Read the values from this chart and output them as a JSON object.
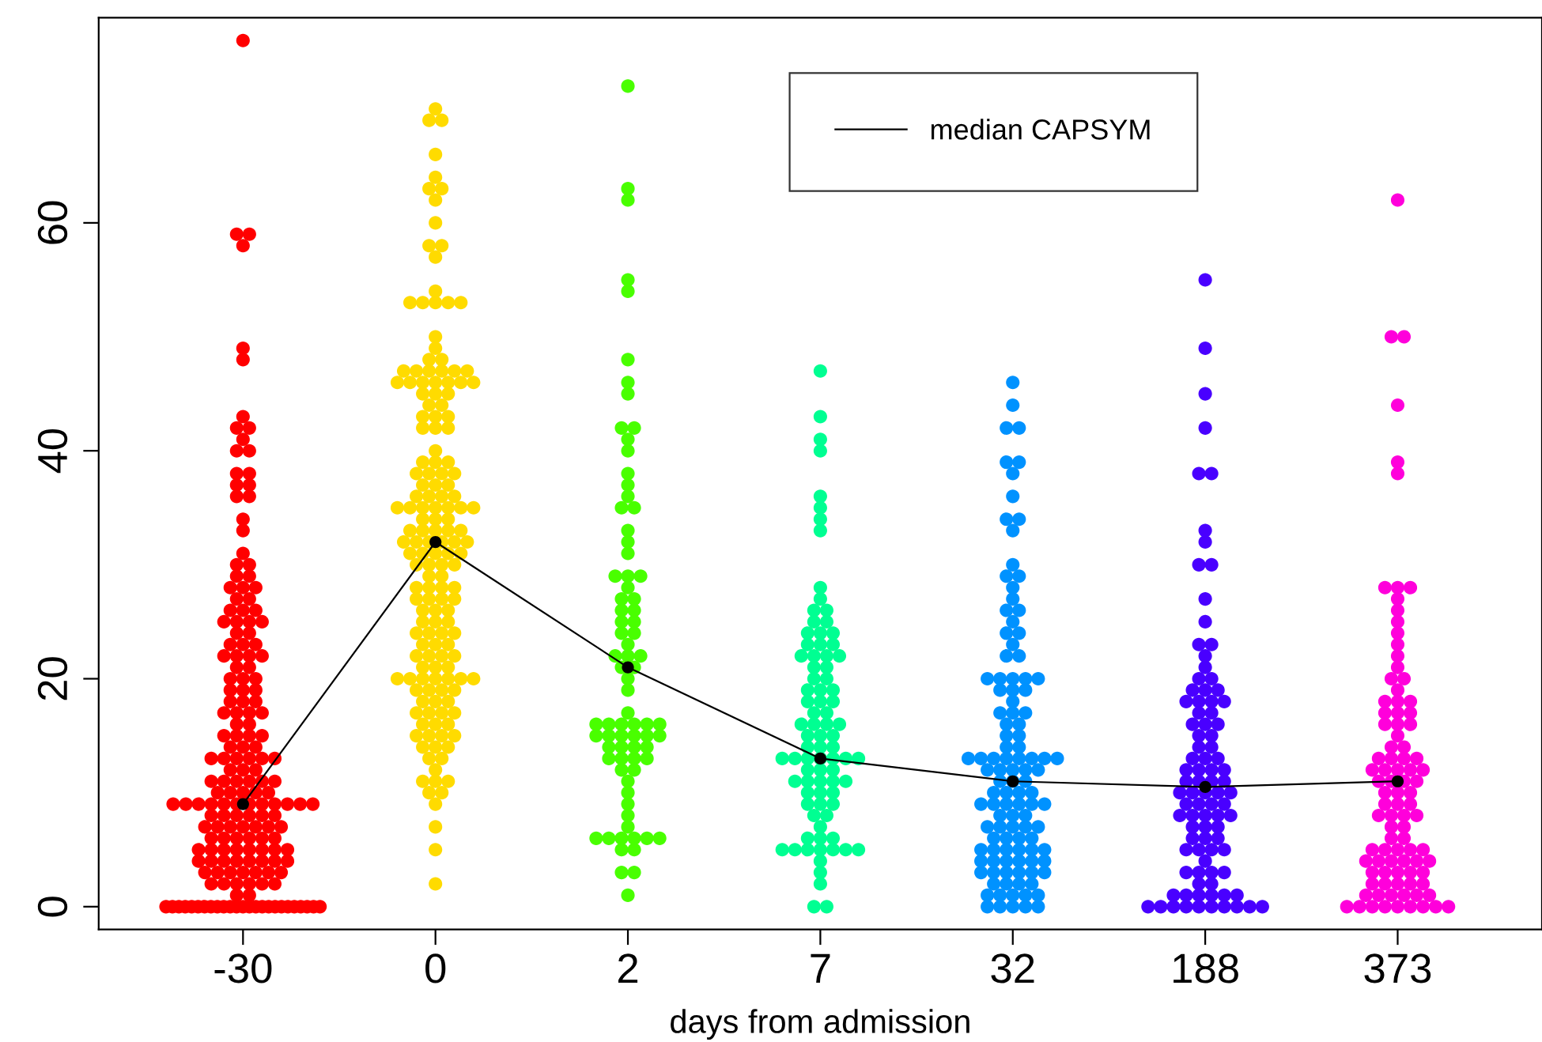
{
  "chart_data": {
    "type": "scatter",
    "xlabel": "days from admission",
    "categories": [
      "-30",
      "0",
      "2",
      "7",
      "32",
      "188",
      "373"
    ],
    "ylim": [
      -2,
      78
    ],
    "yticks": [
      0,
      20,
      40,
      60
    ],
    "grid": false,
    "legend": "top",
    "marker": "circle",
    "series": [
      {
        "type": "scatter",
        "color": "#ff0000",
        "x": [
          "-30",
          "-30",
          "-30",
          "-30",
          "-30",
          "-30",
          "-30",
          "-30",
          "-30",
          "-30",
          "-30",
          "-30",
          "-30",
          "-30",
          "-30",
          "-30",
          "-30",
          "-30",
          "-30",
          "-30",
          "-30",
          "-30",
          "-30",
          "-30",
          "-30",
          "-30",
          "-30",
          "-30",
          "-30",
          "-30",
          "-30",
          "-30",
          "-30",
          "-30",
          "-30",
          "-30",
          "-30",
          "-30",
          "-30",
          "-30",
          "-30",
          "-30",
          "-30",
          "-30",
          "-30",
          "-30",
          "-30",
          "-30",
          "-30",
          "-30",
          "-30",
          "-30",
          "-30",
          "-30",
          "-30",
          "-30",
          "-30",
          "-30",
          "-30",
          "-30",
          "-30",
          "-30",
          "-30",
          "-30",
          "-30",
          "-30",
          "-30",
          "-30",
          "-30",
          "-30",
          "-30",
          "-30",
          "-30",
          "-30",
          "-30",
          "-30",
          "-30",
          "-30",
          "-30",
          "-30",
          "-30",
          "-30",
          "-30",
          "-30",
          "-30",
          "-30",
          "-30",
          "-30",
          "-30",
          "-30",
          "-30",
          "-30",
          "-30",
          "-30",
          "-30",
          "-30",
          "-30",
          "-30",
          "-30",
          "-30",
          "-30",
          "-30",
          "-30",
          "-30",
          "-30",
          "-30",
          "-30",
          "-30",
          "-30",
          "-30",
          "-30",
          "-30",
          "-30",
          "-30",
          "-30",
          "-30",
          "-30",
          "-30",
          "-30",
          "-30",
          "-30",
          "-30",
          "-30",
          "-30",
          "-30",
          "-30",
          "-30",
          "-30",
          "-30",
          "-30",
          "-30",
          "-30",
          "-30",
          "-30",
          "-30",
          "-30",
          "-30",
          "-30",
          "-30",
          "-30",
          "-30",
          "-30",
          "-30",
          "-30",
          "-30",
          "-30",
          "-30",
          "-30",
          "-30",
          "-30",
          "-30",
          "-30",
          "-30",
          "-30",
          "-30",
          "-30",
          "-30",
          "-30",
          "-30",
          "-30",
          "-30",
          "-30",
          "-30",
          "-30",
          "-30",
          "-30",
          "-30",
          "-30",
          "-30",
          "-30",
          "-30",
          "-30",
          "-30",
          "-30",
          "-30",
          "-30",
          "-30"
        ],
        "values": [
          0,
          0,
          0,
          0,
          0,
          0,
          0,
          0,
          0,
          0,
          0,
          0,
          0,
          0,
          0,
          0,
          0,
          0,
          0,
          0,
          0,
          0,
          0,
          0,
          0,
          1,
          1,
          2,
          2,
          2,
          2,
          2,
          2,
          3,
          3,
          3,
          3,
          3,
          3,
          3,
          4,
          4,
          4,
          4,
          4,
          4,
          4,
          4,
          5,
          5,
          5,
          5,
          5,
          5,
          5,
          5,
          6,
          6,
          6,
          6,
          6,
          6,
          7,
          7,
          7,
          7,
          7,
          7,
          7,
          8,
          8,
          8,
          8,
          8,
          8,
          9,
          9,
          9,
          9,
          9,
          9,
          9,
          9,
          9,
          9,
          9,
          9,
          10,
          10,
          10,
          10,
          10,
          11,
          11,
          11,
          11,
          11,
          11,
          12,
          12,
          12,
          13,
          13,
          13,
          13,
          13,
          13,
          14,
          14,
          14,
          15,
          15,
          15,
          15,
          16,
          16,
          17,
          17,
          17,
          17,
          18,
          18,
          18,
          19,
          19,
          19,
          20,
          20,
          20,
          21,
          21,
          22,
          22,
          22,
          22,
          23,
          23,
          23,
          24,
          24,
          25,
          25,
          25,
          25,
          26,
          26,
          26,
          27,
          27,
          28,
          28,
          28,
          29,
          29,
          30,
          30,
          31,
          33,
          34,
          36,
          36,
          37,
          37,
          38,
          38,
          40,
          40,
          41,
          42,
          42,
          43,
          48,
          49,
          58,
          59,
          59,
          76
        ]
      },
      {
        "type": "scatter",
        "color": "#ffdb00",
        "x": [
          "0",
          "0",
          "0",
          "0",
          "0",
          "0",
          "0",
          "0",
          "0",
          "0",
          "0",
          "0",
          "0",
          "0",
          "0",
          "0",
          "0",
          "0",
          "0",
          "0",
          "0",
          "0",
          "0",
          "0",
          "0",
          "0",
          "0",
          "0",
          "0",
          "0",
          "0",
          "0",
          "0",
          "0",
          "0",
          "0",
          "0",
          "0",
          "0",
          "0",
          "0",
          "0",
          "0",
          "0",
          "0",
          "0",
          "0",
          "0",
          "0",
          "0",
          "0",
          "0",
          "0",
          "0",
          "0",
          "0",
          "0",
          "0",
          "0",
          "0",
          "0",
          "0",
          "0",
          "0",
          "0",
          "0",
          "0",
          "0",
          "0",
          "0",
          "0",
          "0",
          "0",
          "0",
          "0",
          "0",
          "0",
          "0",
          "0",
          "0",
          "0",
          "0",
          "0",
          "0",
          "0",
          "0",
          "0",
          "0",
          "0",
          "0",
          "0",
          "0",
          "0",
          "0",
          "0",
          "0",
          "0",
          "0",
          "0",
          "0",
          "0",
          "0",
          "0",
          "0",
          "0",
          "0",
          "0",
          "0",
          "0",
          "0",
          "0",
          "0",
          "0",
          "0",
          "0",
          "0",
          "0",
          "0",
          "0",
          "0",
          "0",
          "0",
          "0",
          "0",
          "0",
          "0",
          "0",
          "0",
          "0",
          "0",
          "0",
          "0",
          "0",
          "0",
          "0",
          "0",
          "0",
          "0",
          "0",
          "0",
          "0",
          "0",
          "0",
          "0",
          "0",
          "0",
          "0",
          "0",
          "0",
          "0",
          "0",
          "0",
          "0",
          "0",
          "0",
          "0",
          "0",
          "0",
          "0",
          "0",
          "0"
        ],
        "values": [
          2,
          5,
          7,
          9,
          10,
          10,
          11,
          11,
          11,
          12,
          13,
          13,
          14,
          14,
          14,
          15,
          15,
          15,
          15,
          16,
          16,
          16,
          17,
          17,
          17,
          17,
          18,
          18,
          18,
          19,
          19,
          19,
          19,
          20,
          20,
          20,
          20,
          20,
          20,
          20,
          21,
          21,
          21,
          22,
          22,
          22,
          22,
          23,
          23,
          23,
          24,
          24,
          24,
          24,
          25,
          25,
          25,
          26,
          26,
          26,
          27,
          27,
          27,
          27,
          28,
          28,
          28,
          28,
          29,
          29,
          30,
          30,
          30,
          30,
          31,
          31,
          31,
          31,
          31,
          32,
          32,
          32,
          32,
          32,
          32,
          33,
          33,
          33,
          33,
          33,
          34,
          34,
          34,
          35,
          35,
          35,
          35,
          35,
          35,
          35,
          36,
          36,
          36,
          36,
          37,
          37,
          37,
          38,
          38,
          38,
          38,
          39,
          39,
          39,
          40,
          42,
          42,
          42,
          43,
          43,
          43,
          44,
          44,
          45,
          45,
          45,
          46,
          46,
          46,
          46,
          46,
          46,
          46,
          47,
          47,
          47,
          47,
          47,
          47,
          48,
          48,
          49,
          50,
          53,
          53,
          53,
          53,
          53,
          54,
          57,
          58,
          58,
          60,
          62,
          63,
          63,
          64,
          66,
          69,
          69,
          70
        ]
      },
      {
        "type": "scatter",
        "color": "#49ff00",
        "x": [
          "2",
          "2",
          "2",
          "2",
          "2",
          "2",
          "2",
          "2",
          "2",
          "2",
          "2",
          "2",
          "2",
          "2",
          "2",
          "2",
          "2",
          "2",
          "2",
          "2",
          "2",
          "2",
          "2",
          "2",
          "2",
          "2",
          "2",
          "2",
          "2",
          "2",
          "2",
          "2",
          "2",
          "2",
          "2",
          "2",
          "2",
          "2",
          "2",
          "2",
          "2",
          "2",
          "2",
          "2",
          "2",
          "2",
          "2",
          "2",
          "2",
          "2",
          "2",
          "2",
          "2",
          "2",
          "2",
          "2",
          "2",
          "2",
          "2",
          "2",
          "2",
          "2",
          "2",
          "2",
          "2",
          "2",
          "2",
          "2",
          "2",
          "2",
          "2",
          "2",
          "2",
          "2",
          "2",
          "2",
          "2",
          "2",
          "2"
        ],
        "values": [
          1,
          3,
          3,
          5,
          5,
          6,
          6,
          6,
          6,
          6,
          6,
          7,
          8,
          9,
          10,
          11,
          12,
          12,
          13,
          13,
          13,
          13,
          14,
          14,
          14,
          14,
          15,
          15,
          15,
          15,
          15,
          15,
          16,
          16,
          16,
          16,
          16,
          16,
          17,
          19,
          20,
          21,
          21,
          22,
          22,
          22,
          23,
          24,
          24,
          25,
          25,
          26,
          26,
          27,
          27,
          28,
          29,
          29,
          29,
          31,
          32,
          33,
          35,
          35,
          36,
          37,
          38,
          40,
          41,
          42,
          42,
          45,
          46,
          48,
          54,
          55,
          62,
          63,
          72
        ]
      },
      {
        "type": "scatter",
        "color": "#00ff92",
        "x": [
          "7",
          "7",
          "7",
          "7",
          "7",
          "7",
          "7",
          "7",
          "7",
          "7",
          "7",
          "7",
          "7",
          "7",
          "7",
          "7",
          "7",
          "7",
          "7",
          "7",
          "7",
          "7",
          "7",
          "7",
          "7",
          "7",
          "7",
          "7",
          "7",
          "7",
          "7",
          "7",
          "7",
          "7",
          "7",
          "7",
          "7",
          "7",
          "7",
          "7",
          "7",
          "7",
          "7",
          "7",
          "7",
          "7",
          "7",
          "7",
          "7",
          "7",
          "7",
          "7",
          "7",
          "7",
          "7",
          "7",
          "7",
          "7",
          "7",
          "7",
          "7",
          "7",
          "7",
          "7",
          "7",
          "7",
          "7",
          "7",
          "7",
          "7",
          "7",
          "7",
          "7",
          "7",
          "7",
          "7",
          "7",
          "7",
          "7",
          "7",
          "7",
          "7",
          "7",
          "7",
          "7"
        ],
        "values": [
          0,
          0,
          2,
          3,
          4,
          5,
          5,
          5,
          5,
          5,
          5,
          5,
          6,
          6,
          6,
          7,
          8,
          8,
          9,
          9,
          9,
          10,
          10,
          10,
          11,
          11,
          11,
          11,
          11,
          12,
          12,
          12,
          13,
          13,
          13,
          13,
          13,
          13,
          13,
          14,
          14,
          14,
          15,
          15,
          15,
          16,
          16,
          16,
          16,
          17,
          17,
          18,
          18,
          18,
          19,
          19,
          19,
          20,
          20,
          21,
          21,
          22,
          22,
          22,
          22,
          23,
          23,
          23,
          24,
          24,
          24,
          25,
          25,
          26,
          26,
          27,
          28,
          33,
          34,
          35,
          36,
          40,
          41,
          43,
          47
        ]
      },
      {
        "type": "scatter",
        "color": "#0092ff",
        "x": [
          "32",
          "32",
          "32",
          "32",
          "32",
          "32",
          "32",
          "32",
          "32",
          "32",
          "32",
          "32",
          "32",
          "32",
          "32",
          "32",
          "32",
          "32",
          "32",
          "32",
          "32",
          "32",
          "32",
          "32",
          "32",
          "32",
          "32",
          "32",
          "32",
          "32",
          "32",
          "32",
          "32",
          "32",
          "32",
          "32",
          "32",
          "32",
          "32",
          "32",
          "32",
          "32",
          "32",
          "32",
          "32",
          "32",
          "32",
          "32",
          "32",
          "32",
          "32",
          "32",
          "32",
          "32",
          "32",
          "32",
          "32",
          "32",
          "32",
          "32",
          "32",
          "32",
          "32",
          "32",
          "32",
          "32",
          "32",
          "32",
          "32",
          "32",
          "32",
          "32",
          "32",
          "32",
          "32",
          "32",
          "32",
          "32",
          "32",
          "32",
          "32",
          "32",
          "32",
          "32",
          "32",
          "32",
          "32",
          "32",
          "32",
          "32",
          "32",
          "32",
          "32",
          "32",
          "32",
          "32",
          "32",
          "32",
          "32",
          "32",
          "32",
          "32",
          "32",
          "32",
          "32",
          "32",
          "32",
          "32",
          "32",
          "32",
          "32",
          "32"
        ],
        "values": [
          0,
          0,
          0,
          0,
          0,
          1,
          1,
          1,
          1,
          1,
          2,
          2,
          2,
          2,
          3,
          3,
          3,
          3,
          3,
          3,
          4,
          4,
          4,
          4,
          4,
          4,
          5,
          5,
          5,
          5,
          5,
          5,
          6,
          6,
          6,
          6,
          7,
          7,
          7,
          7,
          7,
          8,
          8,
          8,
          9,
          9,
          9,
          9,
          9,
          9,
          10,
          10,
          10,
          10,
          11,
          11,
          11,
          12,
          12,
          12,
          12,
          12,
          13,
          13,
          13,
          13,
          13,
          13,
          13,
          13,
          14,
          14,
          15,
          15,
          16,
          16,
          17,
          17,
          17,
          18,
          19,
          19,
          19,
          20,
          20,
          20,
          20,
          20,
          22,
          22,
          23,
          24,
          24,
          25,
          26,
          26,
          27,
          28,
          29,
          29,
          30,
          33,
          34,
          34,
          36,
          38,
          39,
          39,
          42,
          42,
          44,
          46
        ]
      },
      {
        "type": "scatter",
        "color": "#4900ff",
        "x": [
          "188",
          "188",
          "188",
          "188",
          "188",
          "188",
          "188",
          "188",
          "188",
          "188",
          "188",
          "188",
          "188",
          "188",
          "188",
          "188",
          "188",
          "188",
          "188",
          "188",
          "188",
          "188",
          "188",
          "188",
          "188",
          "188",
          "188",
          "188",
          "188",
          "188",
          "188",
          "188",
          "188",
          "188",
          "188",
          "188",
          "188",
          "188",
          "188",
          "188",
          "188",
          "188",
          "188",
          "188",
          "188",
          "188",
          "188",
          "188",
          "188",
          "188",
          "188",
          "188",
          "188",
          "188",
          "188",
          "188",
          "188",
          "188",
          "188",
          "188",
          "188",
          "188",
          "188",
          "188",
          "188",
          "188",
          "188",
          "188",
          "188",
          "188",
          "188",
          "188",
          "188",
          "188",
          "188",
          "188",
          "188",
          "188",
          "188",
          "188",
          "188",
          "188",
          "188",
          "188",
          "188",
          "188",
          "188",
          "188",
          "188",
          "188",
          "188",
          "188"
        ],
        "values": [
          0,
          0,
          0,
          0,
          0,
          0,
          0,
          0,
          0,
          0,
          1,
          1,
          1,
          1,
          1,
          1,
          2,
          2,
          3,
          3,
          3,
          3,
          4,
          5,
          5,
          5,
          5,
          6,
          6,
          6,
          7,
          7,
          7,
          8,
          8,
          8,
          8,
          8,
          9,
          9,
          9,
          9,
          10,
          10,
          10,
          10,
          10,
          11,
          11,
          11,
          11,
          12,
          12,
          12,
          12,
          13,
          13,
          13,
          14,
          14,
          15,
          15,
          16,
          16,
          16,
          17,
          17,
          18,
          18,
          18,
          18,
          19,
          19,
          19,
          20,
          20,
          21,
          22,
          23,
          23,
          25,
          27,
          30,
          30,
          32,
          33,
          38,
          38,
          42,
          45,
          49,
          55
        ]
      },
      {
        "type": "scatter",
        "color": "#ff00db",
        "x": [
          "373",
          "373",
          "373",
          "373",
          "373",
          "373",
          "373",
          "373",
          "373",
          "373",
          "373",
          "373",
          "373",
          "373",
          "373",
          "373",
          "373",
          "373",
          "373",
          "373",
          "373",
          "373",
          "373",
          "373",
          "373",
          "373",
          "373",
          "373",
          "373",
          "373",
          "373",
          "373",
          "373",
          "373",
          "373",
          "373",
          "373",
          "373",
          "373",
          "373",
          "373",
          "373",
          "373",
          "373",
          "373",
          "373",
          "373",
          "373",
          "373",
          "373",
          "373",
          "373",
          "373",
          "373",
          "373",
          "373",
          "373",
          "373",
          "373",
          "373",
          "373",
          "373",
          "373",
          "373",
          "373",
          "373",
          "373",
          "373",
          "373",
          "373",
          "373",
          "373",
          "373",
          "373",
          "373",
          "373",
          "373",
          "373",
          "373",
          "373",
          "373",
          "373",
          "373",
          "373",
          "373",
          "373",
          "373",
          "373",
          "373",
          "373",
          "373",
          "373",
          "373",
          "373"
        ],
        "values": [
          0,
          0,
          0,
          0,
          0,
          0,
          0,
          0,
          0,
          1,
          1,
          1,
          1,
          1,
          1,
          2,
          2,
          2,
          2,
          2,
          3,
          3,
          3,
          3,
          3,
          4,
          4,
          4,
          4,
          4,
          4,
          5,
          5,
          5,
          5,
          5,
          6,
          6,
          7,
          7,
          8,
          8,
          8,
          8,
          9,
          9,
          9,
          10,
          10,
          10,
          11,
          11,
          11,
          11,
          12,
          12,
          12,
          12,
          12,
          13,
          13,
          13,
          13,
          14,
          14,
          15,
          16,
          16,
          16,
          17,
          17,
          17,
          18,
          18,
          18,
          19,
          20,
          20,
          21,
          22,
          23,
          24,
          25,
          26,
          27,
          28,
          28,
          28,
          38,
          39,
          44,
          50,
          50,
          62
        ]
      },
      {
        "type": "line",
        "name": "median CAPSYM",
        "color": "#000000",
        "line_style": "solid",
        "marker": "circle",
        "values": [
          9,
          32,
          21,
          13,
          11,
          10.5,
          11
        ]
      }
    ]
  }
}
